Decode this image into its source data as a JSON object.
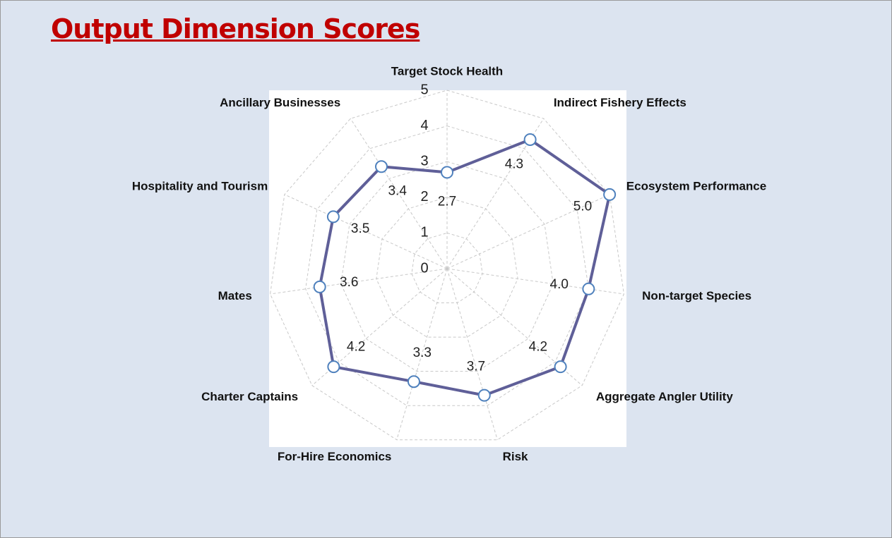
{
  "chart_data": {
    "type": "radar",
    "title": "Output Dimension Scores",
    "categories": [
      "Target Stock Health",
      "Indirect Fishery Effects",
      "Ecosystem Performance",
      "Non-target Species",
      "Aggregate Angler Utility",
      "Risk",
      "For-Hire Economics",
      "Charter Captains",
      "Mates",
      "Hospitality and Tourism",
      "Ancillary Businesses"
    ],
    "series": [
      {
        "color": "#5f5f98",
        "marker_color": "#4f81bd",
        "values": [
          2.7,
          4.3,
          5.0,
          4.0,
          4.2,
          3.7,
          3.3,
          4.2,
          3.6,
          3.5,
          3.4
        ],
        "value_labels": [
          "2.7",
          "4.3",
          "5.0",
          "4.0",
          "4.2",
          "3.7",
          "3.3",
          "4.2",
          "3.6",
          "3.5",
          "3.4"
        ]
      }
    ],
    "rlim": [
      0,
      5
    ],
    "rticks": [
      0,
      1,
      2,
      3,
      4,
      5
    ],
    "grid": true
  }
}
